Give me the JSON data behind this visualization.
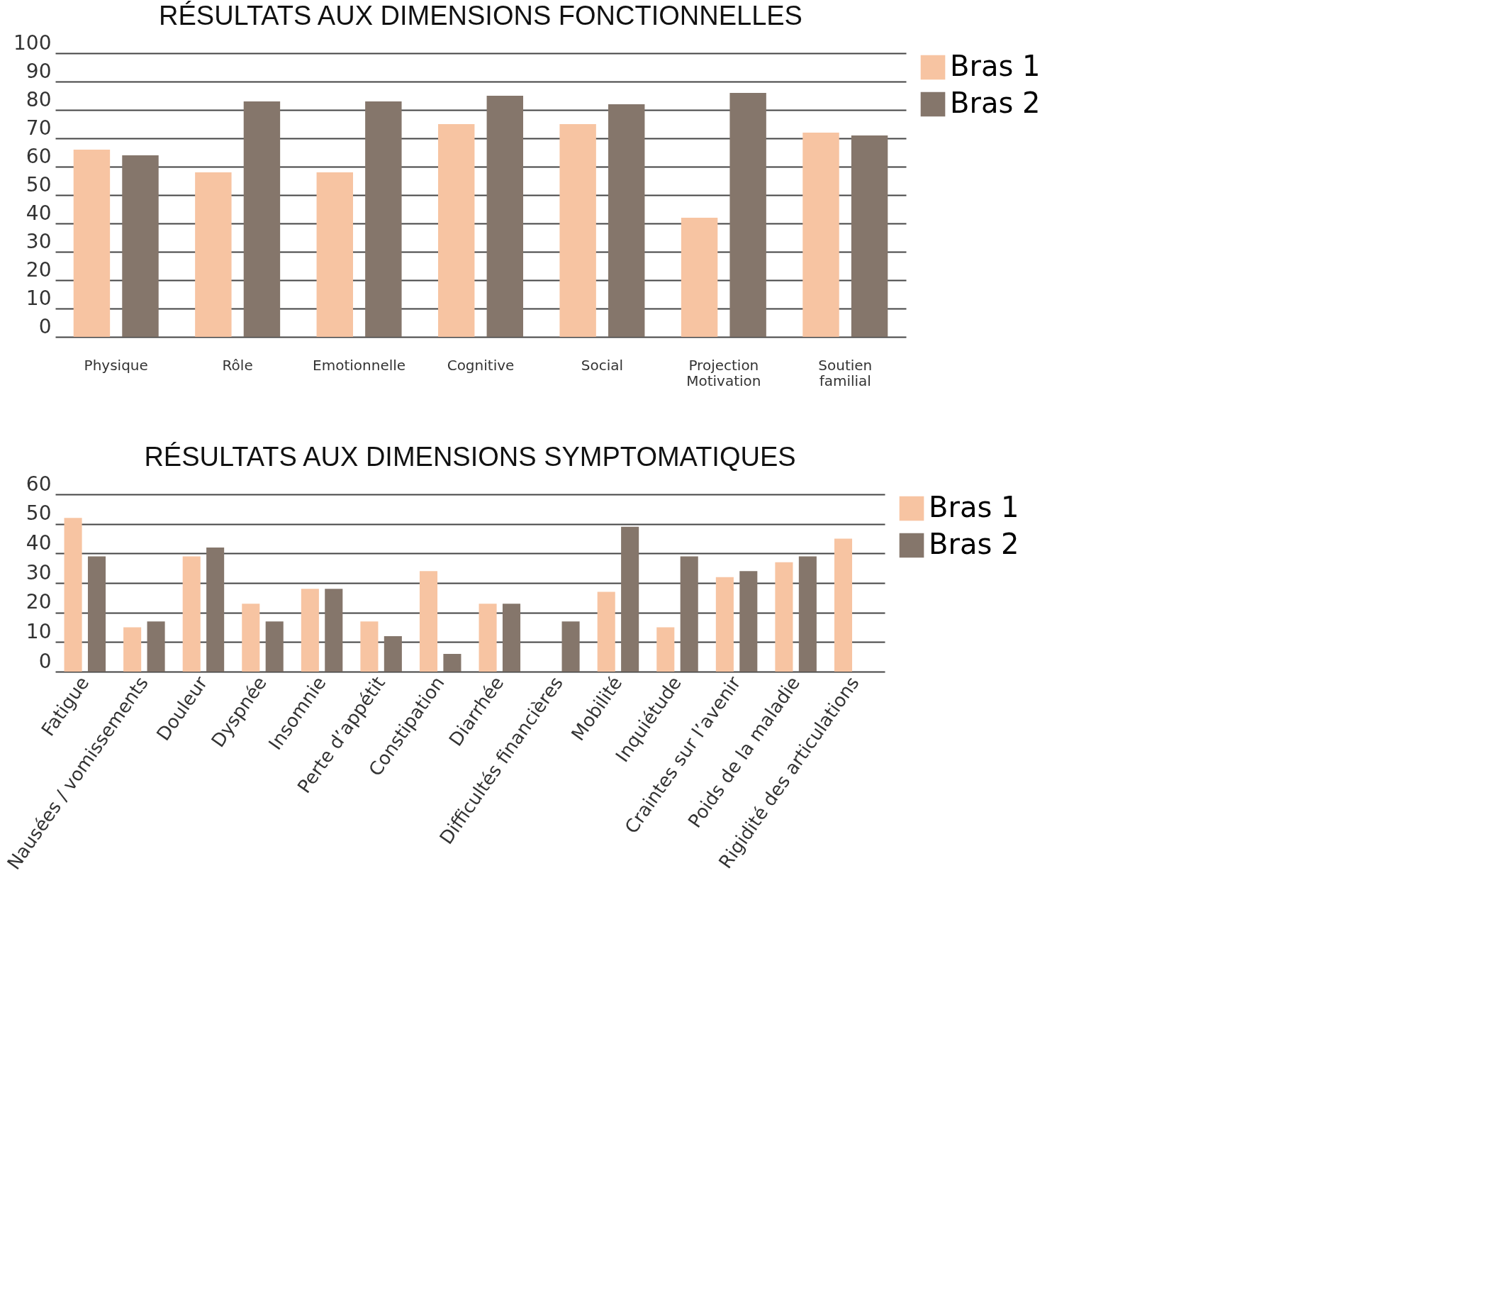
{
  "chart_data": [
    {
      "type": "bar",
      "title": "RÉSULTATS AUX DIMENSIONS FONCTIONNELLES",
      "categories": [
        "Physique",
        "Rôle",
        "Emotionnelle",
        "Cognitive",
        "Social",
        "Projection Motivation",
        "Soutien familial"
      ],
      "series": [
        {
          "name": "Bras 1",
          "color": "#f7c4a2",
          "values": [
            66,
            58,
            58,
            75,
            75,
            42,
            72
          ]
        },
        {
          "name": "Bras 2",
          "color": "#85766b",
          "values": [
            64,
            83,
            83,
            85,
            82,
            86,
            71
          ]
        }
      ],
      "ylim": [
        0,
        100
      ],
      "yticks": [
        0,
        10,
        20,
        30,
        40,
        50,
        60,
        70,
        80,
        90,
        100
      ],
      "grid": "y",
      "legend": "right"
    },
    {
      "type": "bar",
      "title": "RÉSULTATS AUX DIMENSIONS SYMPTOMATIQUES",
      "categories": [
        "Fatigue",
        "Nausées / vomissements",
        "Douleur",
        "Dyspnée",
        "Insomnie",
        "Perte d’appétit",
        "Constipation",
        "Diarrhée",
        "Difficultés financières",
        "Mobilité",
        "Inquiétude",
        "Craintes sur l’avenir",
        "Poids de la maladie",
        "Rigidité des articulations"
      ],
      "series": [
        {
          "name": "Bras 1",
          "color": "#f7c4a2",
          "values": [
            52,
            15,
            39,
            23,
            28,
            17,
            34,
            23,
            null,
            27,
            15,
            32,
            37,
            45
          ]
        },
        {
          "name": "Bras 2",
          "color": "#85766b",
          "values": [
            39,
            17,
            42,
            17,
            28,
            12,
            6,
            23,
            17,
            49,
            39,
            34,
            39,
            null
          ]
        }
      ],
      "ylim": [
        0,
        60
      ],
      "yticks": [
        0,
        10,
        20,
        30,
        40,
        50,
        60
      ],
      "grid": "y",
      "legend": "right"
    }
  ]
}
